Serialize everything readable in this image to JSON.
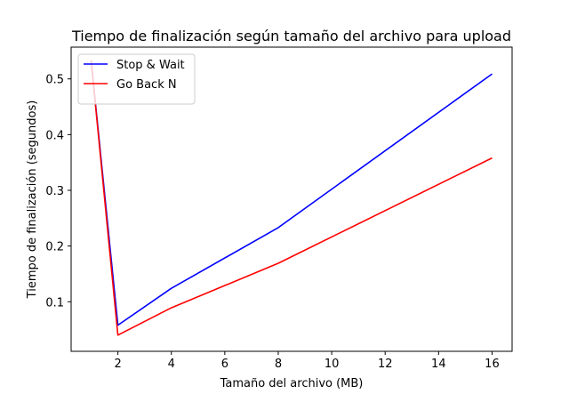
{
  "chart_data": {
    "type": "line",
    "title": "Tiempo de finalización según tamaño del archivo para upload",
    "xlabel": "Tamaño del archivo (MB)",
    "ylabel": "Tiempo de finalización (segundos)",
    "x": [
      1,
      2,
      4,
      8,
      16
    ],
    "xlim": [
      0.25,
      16.75
    ],
    "ylim": [
      0.011,
      0.557
    ],
    "xticks": [
      2,
      4,
      6,
      8,
      10,
      12,
      14,
      16
    ],
    "xtick_labels": [
      "2",
      "4",
      "6",
      "8",
      "10",
      "12",
      "14",
      "16"
    ],
    "yticks": [
      0.1,
      0.2,
      0.3,
      0.4,
      0.5
    ],
    "ytick_labels": [
      "0.1",
      "0.2",
      "0.3",
      "0.4",
      "0.5"
    ],
    "grid": false,
    "legend_position": "top-left",
    "series": [
      {
        "name": "Stop & Wait",
        "color": "#0000ff",
        "values": [
          0.533,
          0.058,
          0.124,
          0.233,
          0.509
        ]
      },
      {
        "name": "Go Back N",
        "color": "#ff0000",
        "values": [
          0.533,
          0.04,
          0.089,
          0.169,
          0.358
        ]
      }
    ]
  }
}
